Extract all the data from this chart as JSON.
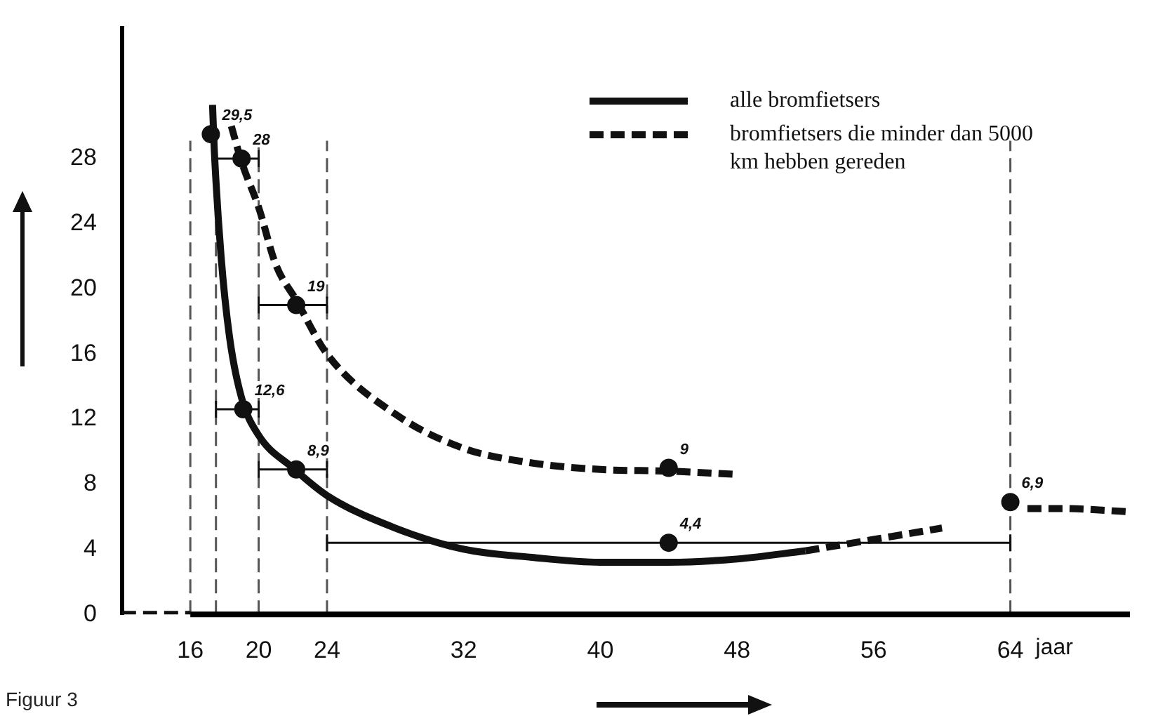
{
  "chart_data": {
    "type": "line",
    "xlabel": "jaar",
    "legend": "top right",
    "grid": false,
    "xlim": [
      12,
      71
    ],
    "ylim": [
      0,
      36
    ],
    "xticks": [
      16,
      20,
      24,
      32,
      40,
      48,
      56,
      64
    ],
    "yticks": [
      0,
      4,
      8,
      12,
      16,
      20,
      24,
      28
    ],
    "annotations": [
      "Figuur 3"
    ],
    "ref_lines": [
      {
        "axis": "x",
        "value": 16,
        "label": null,
        "line_style": "dashed",
        "color": "#555555"
      },
      {
        "axis": "x",
        "value": 17.5,
        "label": null,
        "line_style": "dashed",
        "color": "#555555"
      },
      {
        "axis": "x",
        "value": 20,
        "label": null,
        "line_style": "dashed",
        "color": "#555555"
      },
      {
        "axis": "x",
        "value": 24,
        "label": null,
        "line_style": "dashed",
        "color": "#555555"
      },
      {
        "axis": "x",
        "value": 64,
        "label": null,
        "line_style": "dashed",
        "color": "#555555"
      }
    ],
    "series": [
      {
        "name": "alle bromfietsers",
        "color": "#111111",
        "line_style": "solid",
        "marker": "none",
        "x": [
          17.3,
          17.4,
          17.8,
          18.3,
          19,
          20,
          22,
          24,
          28,
          32,
          36,
          40,
          44,
          48,
          52
        ],
        "values": [
          31.3,
          28.6,
          22,
          17,
          13.3,
          11,
          9,
          7.3,
          5.3,
          4,
          3.5,
          3.2,
          3.2,
          3.4,
          3.9
        ]
      },
      {
        "name": "bromfietsers die minder dan 5000 km hebben gereden",
        "color": "#111111",
        "line_style": "dashed",
        "marker": "none",
        "x": [
          18.4,
          19,
          20,
          21,
          22.2,
          24,
          28,
          32,
          36,
          40,
          44,
          48
        ],
        "values": [
          30,
          27.8,
          25,
          21.5,
          19.3,
          16,
          12.3,
          10.2,
          9.3,
          8.9,
          8.8,
          8.6
        ]
      },
      {
        "type": "line",
        "color": "#111111",
        "line_style": "dashed",
        "marker": "none",
        "x": [
          52,
          56,
          60
        ],
        "values": [
          3.9,
          4.6,
          5.3
        ]
      },
      {
        "type": "line",
        "color": "#111111",
        "line_style": "dashed",
        "marker": "none",
        "x": [
          65,
          67,
          71
        ],
        "values": [
          6.5,
          6.5,
          6.3
        ]
      },
      {
        "type": "line",
        "color": "#111111",
        "line_style": "dashed",
        "marker": "none",
        "x": [
          12,
          16
        ],
        "values": [
          0,
          0
        ]
      },
      {
        "type": "scatter",
        "color": "#111111",
        "marker": "circle",
        "x": [
          17.2,
          19.1,
          22.2,
          44,
          64
        ],
        "values": [
          29.5,
          12.6,
          8.9,
          4.4,
          6.9
        ],
        "value_labels": [
          "29,5",
          "12,6",
          "8,9",
          "4,4",
          "6,9"
        ],
        "xerrors": [
          null,
          [
            17.5,
            20
          ],
          [
            20,
            24
          ],
          [
            24,
            64
          ],
          null
        ]
      },
      {
        "type": "scatter",
        "color": "#111111",
        "marker": "circle",
        "x": [
          19,
          22.2,
          44
        ],
        "values": [
          28,
          19,
          9
        ],
        "value_labels": [
          "28",
          "19",
          "9"
        ],
        "xerrors": [
          [
            17.5,
            20
          ],
          [
            20,
            24
          ],
          null
        ]
      }
    ]
  }
}
